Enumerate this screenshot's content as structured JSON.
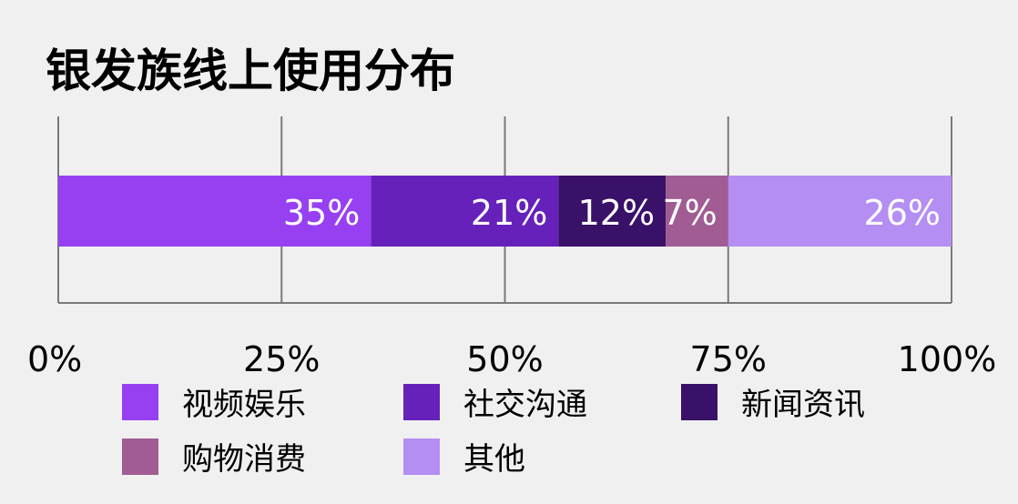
{
  "chart_data": {
    "type": "bar",
    "orientation": "horizontal",
    "stacked": true,
    "title": "银发族线上使用分布",
    "xlim": [
      0,
      100
    ],
    "x_ticks": [
      "0%",
      "25%",
      "50%",
      "75%",
      "100%"
    ],
    "x_tick_values": [
      0,
      25,
      50,
      75,
      100
    ],
    "grid": true,
    "legend_position": "bottom",
    "series": [
      {
        "name": "视频娱乐",
        "value": 35,
        "label": "35%",
        "color": "#9740f2"
      },
      {
        "name": "社交沟通",
        "value": 21,
        "label": "21%",
        "color": "#6621bb"
      },
      {
        "name": "新闻资讯",
        "value": 12,
        "label": "12%",
        "color": "#391168"
      },
      {
        "name": "购物消费",
        "value": 7,
        "label": "7%",
        "color": "#a05c93"
      },
      {
        "name": "其他",
        "value": 26,
        "label": "26%",
        "color": "#b48ef2"
      }
    ]
  }
}
